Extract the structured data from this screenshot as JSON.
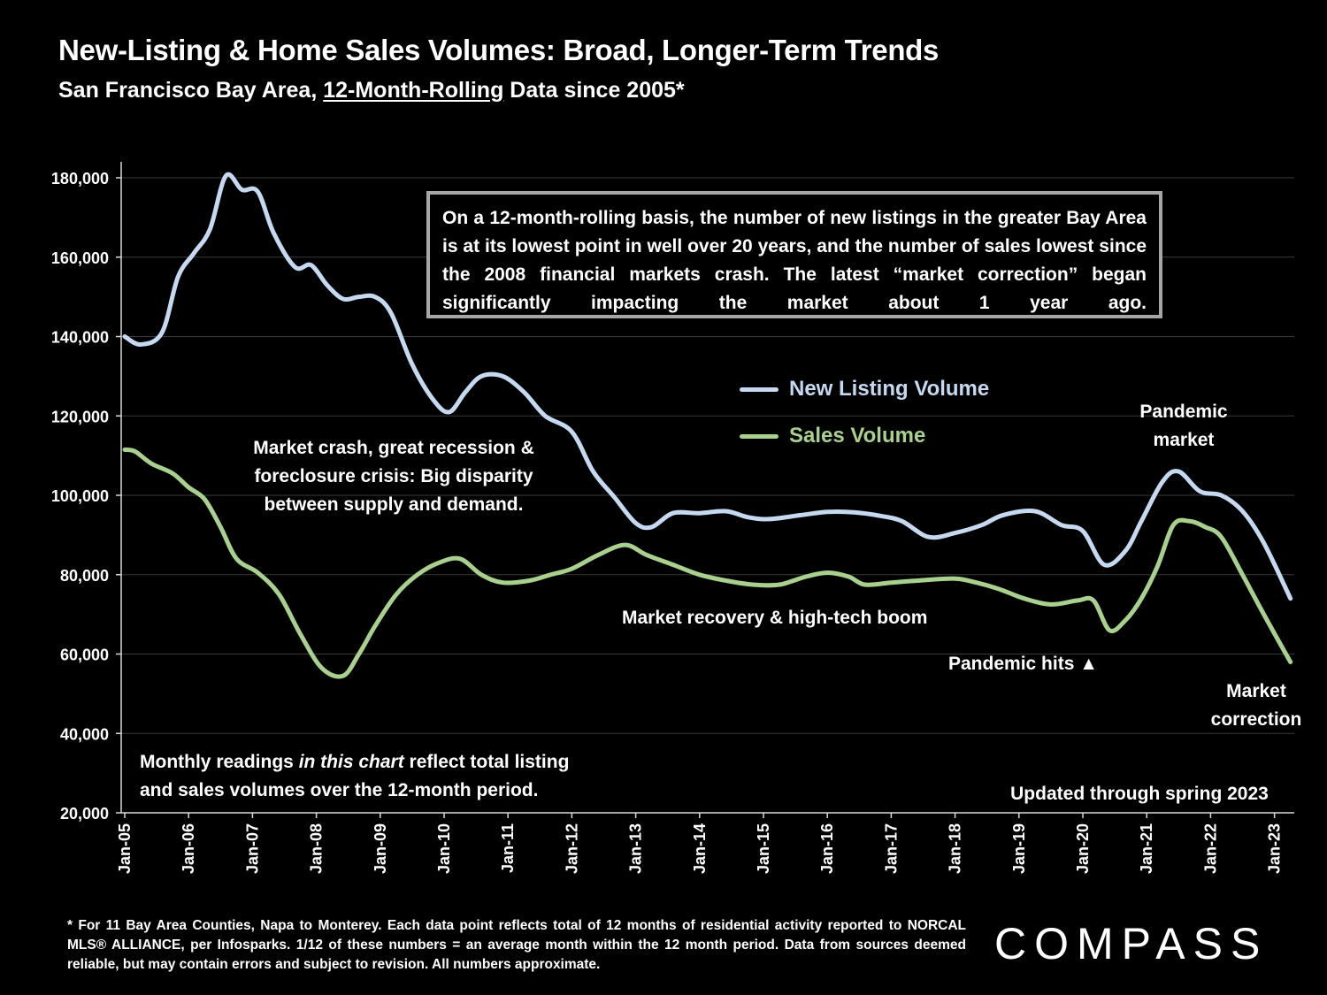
{
  "header": {
    "title": "New-Listing & Home Sales Volumes: Broad, Longer-Term Trends",
    "subtitle_prefix": "San Francisco Bay Area, ",
    "subtitle_underlined": "12-Month-Rolling",
    "subtitle_suffix": " Data since 2005*"
  },
  "callout": {
    "text": "On a 12-month-rolling basis, the number of new listings in the greater Bay Area is at its lowest point in well over 20 years, and the number of sales lowest since the 2008 financial markets crash. The latest “market correction” began significantly impacting the market about 1 year ago."
  },
  "annotations": {
    "crash_line1": "Market crash,  great recession &",
    "crash_line2": "foreclosure crisis: Big disparity",
    "crash_line3": "between supply and demand.",
    "recovery": "Market recovery & high-tech boom",
    "pandemic_hits": "Pandemic hits ▲",
    "pandemic_market_line1": "Pandemic",
    "pandemic_market_line2": "market",
    "correction_line1": "Market",
    "correction_line2": "correction",
    "monthly_line1_a": "Monthly readings ",
    "monthly_line1_b": "in this chart",
    "monthly_line1_c": " reflect total listing",
    "monthly_line2": "and sales volumes over the 12-month period.",
    "updated": "Updated through spring 2023"
  },
  "footnote": "* For 11 Bay Area Counties, Napa to Monterey. Each data point reflects total of 12 months of residential activity reported to NORCAL MLS® ALLIANCE, per Infosparks. 1/12 of these numbers = an average month within the 12 month period. Data from sources deemed reliable, but may contain errors and subject to revision. All numbers approximate.",
  "logo": {
    "text": "COMPASS"
  },
  "colors": {
    "background": "#000000",
    "listing": "#c5d9f1",
    "sales": "#a9d18e",
    "grid": "#3a3a3a",
    "axis": "#d9d9d9"
  },
  "chart_data": {
    "type": "line",
    "title": "New-Listing & Home Sales Volumes: Broad, Longer-Term Trends",
    "xlabel": "",
    "ylabel": "",
    "ylim": [
      20000,
      180000
    ],
    "yticks": [
      20000,
      40000,
      60000,
      80000,
      100000,
      120000,
      140000,
      160000,
      180000
    ],
    "ytick_labels": [
      "20,000",
      "40,000",
      "60,000",
      "80,000",
      "100,000",
      "120,000",
      "140,000",
      "160,000",
      "180,000"
    ],
    "xticks": [
      "Jan-05",
      "Jan-06",
      "Jan-07",
      "Jan-08",
      "Jan-09",
      "Jan-10",
      "Jan-11",
      "Jan-12",
      "Jan-13",
      "Jan-14",
      "Jan-15",
      "Jan-16",
      "Jan-17",
      "Jan-18",
      "Jan-19",
      "Jan-20",
      "Jan-21",
      "Jan-22",
      "Jan-23"
    ],
    "grid": true,
    "legend_position": "upper-right",
    "series": [
      {
        "name": "New Listing Volume",
        "color": "#c5d9f1",
        "points": [
          [
            "2005-01",
            140000
          ],
          [
            "2005-04",
            138000
          ],
          [
            "2005-08",
            141000
          ],
          [
            "2005-11",
            155000
          ],
          [
            "2006-02",
            161000
          ],
          [
            "2006-05",
            167000
          ],
          [
            "2006-08",
            180500
          ],
          [
            "2006-11",
            177000
          ],
          [
            "2007-02",
            176500
          ],
          [
            "2007-05",
            166000
          ],
          [
            "2007-09",
            157500
          ],
          [
            "2007-12",
            158000
          ],
          [
            "2008-03",
            153000
          ],
          [
            "2008-06",
            149500
          ],
          [
            "2008-09",
            150000
          ],
          [
            "2008-12",
            150000
          ],
          [
            "2009-03",
            146000
          ],
          [
            "2009-07",
            133000
          ],
          [
            "2009-11",
            124000
          ],
          [
            "2010-02",
            121000
          ],
          [
            "2010-05",
            126000
          ],
          [
            "2010-08",
            130000
          ],
          [
            "2010-12",
            130000
          ],
          [
            "2011-04",
            126000
          ],
          [
            "2011-08",
            120000
          ],
          [
            "2012-01",
            116000
          ],
          [
            "2012-05",
            106000
          ],
          [
            "2012-09",
            99500
          ],
          [
            "2013-01",
            93000
          ],
          [
            "2013-04",
            92000
          ],
          [
            "2013-08",
            95500
          ],
          [
            "2014-01",
            95500
          ],
          [
            "2014-06",
            96000
          ],
          [
            "2014-10",
            94500
          ],
          [
            "2015-02",
            94000
          ],
          [
            "2015-08",
            95000
          ],
          [
            "2016-01",
            95800
          ],
          [
            "2016-06",
            95700
          ],
          [
            "2016-11",
            94800
          ],
          [
            "2017-03",
            93500
          ],
          [
            "2017-08",
            89500
          ],
          [
            "2018-01",
            90500
          ],
          [
            "2018-06",
            92500
          ],
          [
            "2018-10",
            95000
          ],
          [
            "2019-04",
            96000
          ],
          [
            "2019-09",
            92500
          ],
          [
            "2020-01",
            91000
          ],
          [
            "2020-05",
            82500
          ],
          [
            "2020-09",
            86000
          ],
          [
            "2020-12",
            93500
          ],
          [
            "2021-04",
            103500
          ],
          [
            "2021-07",
            106000
          ],
          [
            "2021-11",
            101000
          ],
          [
            "2022-03",
            100000
          ],
          [
            "2022-07",
            96000
          ],
          [
            "2022-11",
            88000
          ],
          [
            "2023-04",
            74000
          ]
        ]
      },
      {
        "name": "Sales Volume",
        "color": "#a9d18e",
        "points": [
          [
            "2005-01",
            111500
          ],
          [
            "2005-03",
            111000
          ],
          [
            "2005-06",
            108000
          ],
          [
            "2005-10",
            105500
          ],
          [
            "2006-01",
            102000
          ],
          [
            "2006-04",
            99000
          ],
          [
            "2006-07",
            92000
          ],
          [
            "2006-10",
            84000
          ],
          [
            "2007-02",
            80500
          ],
          [
            "2007-06",
            75000
          ],
          [
            "2007-10",
            65000
          ],
          [
            "2008-02",
            56500
          ],
          [
            "2008-06",
            54500
          ],
          [
            "2008-09",
            60000
          ],
          [
            "2008-12",
            67000
          ],
          [
            "2009-04",
            75000
          ],
          [
            "2009-08",
            80000
          ],
          [
            "2009-12",
            83000
          ],
          [
            "2010-04",
            84000
          ],
          [
            "2010-08",
            80000
          ],
          [
            "2010-12",
            78000
          ],
          [
            "2011-05",
            78500
          ],
          [
            "2011-09",
            80000
          ],
          [
            "2012-01",
            81500
          ],
          [
            "2012-06",
            85000
          ],
          [
            "2012-11",
            87500
          ],
          [
            "2013-03",
            85000
          ],
          [
            "2013-08",
            82500
          ],
          [
            "2014-01",
            80000
          ],
          [
            "2014-06",
            78500
          ],
          [
            "2014-11",
            77500
          ],
          [
            "2015-04",
            77500
          ],
          [
            "2015-09",
            79500
          ],
          [
            "2016-01",
            80500
          ],
          [
            "2016-05",
            79500
          ],
          [
            "2016-08",
            77500
          ],
          [
            "2017-01",
            78000
          ],
          [
            "2017-06",
            78500
          ],
          [
            "2018-01",
            79000
          ],
          [
            "2018-05",
            78000
          ],
          [
            "2018-09",
            76500
          ],
          [
            "2019-02",
            74000
          ],
          [
            "2019-07",
            72500
          ],
          [
            "2019-12",
            73500
          ],
          [
            "2020-03",
            73500
          ],
          [
            "2020-06",
            66000
          ],
          [
            "2020-09",
            68500
          ],
          [
            "2020-12",
            74000
          ],
          [
            "2021-03",
            82000
          ],
          [
            "2021-06",
            92500
          ],
          [
            "2021-09",
            93500
          ],
          [
            "2021-12",
            92000
          ],
          [
            "2022-03",
            89500
          ],
          [
            "2022-07",
            80000
          ],
          [
            "2022-11",
            70000
          ],
          [
            "2023-04",
            58000
          ]
        ]
      }
    ]
  }
}
